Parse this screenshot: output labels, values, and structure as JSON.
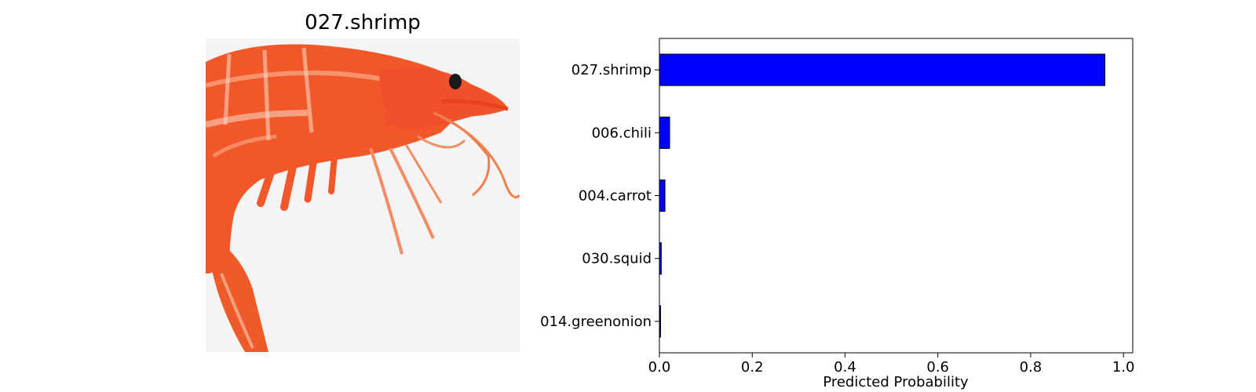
{
  "image_panel": {
    "title": "027.shrimp",
    "subject_icon": "shrimp-photo"
  },
  "colors": {
    "bar_fill": "#0000ff",
    "bar_edge": "#000000",
    "shrimp_body": "#f2572a",
    "shrimp_light": "#f8a17c",
    "background": "#f4f4f4"
  },
  "chart_data": {
    "type": "bar",
    "orientation": "horizontal",
    "categories": [
      "027.shrimp",
      "006.chili",
      "004.carrot",
      "030.squid",
      "014.greenonion"
    ],
    "values": [
      0.96,
      0.022,
      0.012,
      0.004,
      0.002
    ],
    "xlabel": "Predicted Probability",
    "ylabel": "",
    "xlim": [
      0,
      1.02
    ],
    "xticks": [
      0.0,
      0.2,
      0.4,
      0.6,
      0.8,
      1.0
    ],
    "xtick_labels": [
      "0.0",
      "0.2",
      "0.4",
      "0.6",
      "0.8",
      "1.0"
    ],
    "grid": false,
    "legend": "none"
  }
}
